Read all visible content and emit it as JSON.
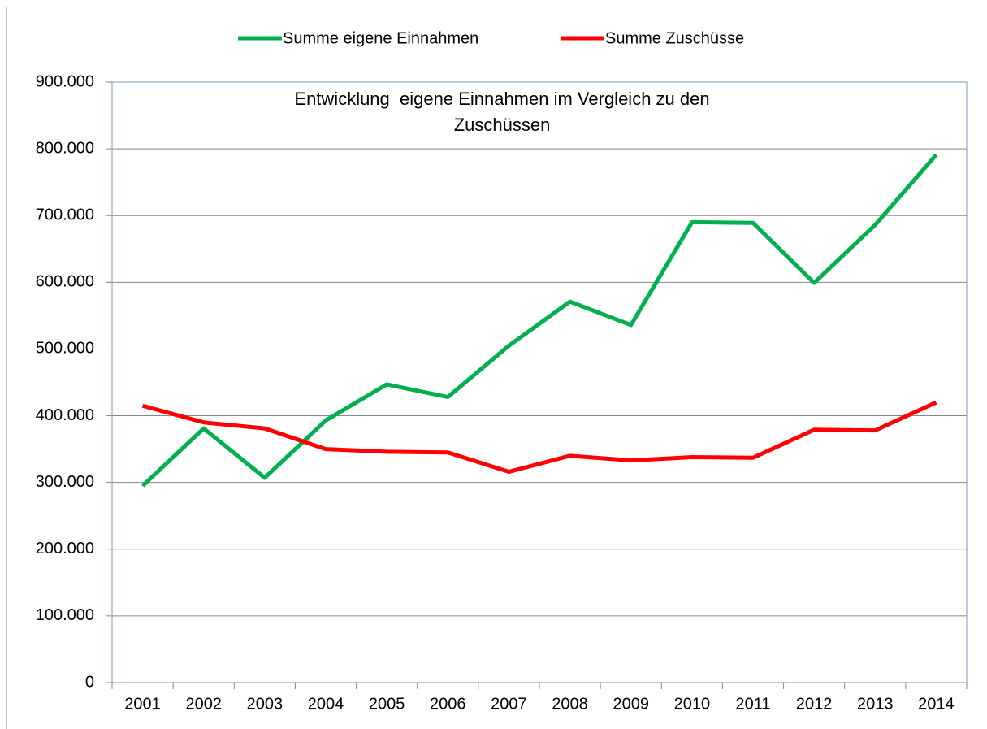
{
  "chart_data": {
    "type": "line",
    "title": "Entwicklung  eigene Einnahmen im Vergleich zu den Zuschüssen",
    "categories": [
      "2001",
      "2002",
      "2003",
      "2004",
      "2005",
      "2006",
      "2007",
      "2008",
      "2009",
      "2010",
      "2011",
      "2012",
      "2013",
      "2014"
    ],
    "series": [
      {
        "name": "Summe eigene Einnahmen",
        "color": "#00b050",
        "values": [
          295000,
          381000,
          307000,
          393000,
          447000,
          428000,
          505000,
          571000,
          536000,
          690000,
          689000,
          599000,
          686000,
          791000
        ]
      },
      {
        "name": "Summe Zuschüsse",
        "color": "#ff0000",
        "values": [
          415000,
          390000,
          381000,
          350000,
          346000,
          345000,
          316000,
          340000,
          333000,
          338000,
          337000,
          379000,
          378000,
          420000
        ]
      }
    ],
    "ylim": [
      0,
      900000
    ],
    "yticks": [
      0,
      {
        "value": 100000,
        "label": "100.000"
      },
      {
        "value": 200000,
        "label": "200.000"
      },
      {
        "value": 300000,
        "label": "300.000"
      },
      {
        "value": 400000,
        "label": "400.000"
      },
      {
        "value": 500000,
        "label": "500.000"
      },
      {
        "value": 600000,
        "label": "600.000"
      },
      {
        "value": 700000,
        "label": "700.000"
      },
      {
        "value": 800000,
        "label": "800.000"
      },
      {
        "value": 900000,
        "label": "900.000"
      }
    ],
    "grid": true,
    "legend": "top"
  }
}
